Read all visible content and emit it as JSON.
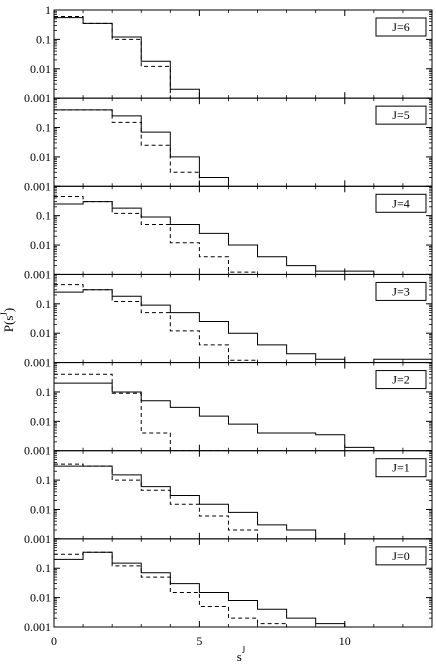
{
  "chart_data": {
    "type": "step-histogram",
    "ylabel": "P(s^J)",
    "ylabel_main": "P(s",
    "ylabel_sup": "J",
    "ylabel_close": ")",
    "xlabel_main": "s",
    "xlabel_sup": "J",
    "xlim": [
      0,
      13
    ],
    "xticks": [
      0,
      5,
      10
    ],
    "xtick_labels": [
      "0",
      "5",
      "10"
    ],
    "yscale": "log",
    "ylim": [
      0.001,
      1
    ],
    "yticks": [
      0.001,
      0.01,
      0.1,
      1
    ],
    "ytick_labels": [
      "0.001",
      "0.01",
      "0.1",
      "1"
    ],
    "bin_edges": [
      0,
      1,
      2,
      3,
      4,
      5,
      6,
      7,
      8,
      9,
      10,
      11,
      12,
      13
    ],
    "line_styles": [
      "solid",
      "dashed"
    ],
    "panels": [
      {
        "label": "J=6",
        "solid": [
          0.55,
          0.35,
          0.12,
          0.018,
          0.002,
          null,
          null,
          null,
          null,
          null,
          null,
          null,
          null
        ],
        "dashed": [
          0.6,
          0.35,
          0.1,
          0.012,
          null,
          null,
          null,
          null,
          null,
          null,
          null,
          null,
          null
        ]
      },
      {
        "label": "J=5",
        "solid": [
          0.4,
          0.4,
          0.25,
          0.07,
          0.01,
          0.002,
          null,
          null,
          null,
          null,
          null,
          null,
          null
        ],
        "dashed": [
          0.4,
          0.4,
          0.15,
          0.025,
          0.003,
          null,
          null,
          null,
          null,
          null,
          null,
          null,
          null
        ]
      },
      {
        "label": "J=4",
        "solid": [
          0.25,
          0.3,
          0.18,
          0.09,
          0.05,
          0.025,
          0.01,
          0.004,
          0.002,
          0.0013,
          0.0013,
          null,
          null
        ],
        "dashed": [
          0.45,
          0.3,
          0.12,
          0.05,
          0.012,
          0.004,
          0.0012,
          null,
          null,
          null,
          null,
          null,
          null
        ]
      },
      {
        "label": "J=3",
        "solid": [
          0.25,
          0.3,
          0.18,
          0.09,
          0.05,
          0.025,
          0.01,
          0.004,
          0.002,
          0.0013,
          null,
          0.0013,
          0.0013
        ],
        "dashed": [
          0.45,
          0.3,
          0.12,
          0.05,
          0.012,
          0.004,
          0.0012,
          null,
          null,
          null,
          null,
          null,
          null
        ]
      },
      {
        "label": "J=2",
        "solid": [
          0.2,
          0.2,
          0.1,
          0.05,
          0.03,
          0.015,
          0.008,
          0.004,
          0.004,
          0.0035,
          0.0013,
          null,
          null
        ],
        "dashed": [
          0.4,
          0.4,
          0.09,
          0.004,
          0.001,
          0.001,
          null,
          null,
          null,
          null,
          null,
          null,
          null
        ]
      },
      {
        "label": "J=1",
        "solid": [
          0.3,
          0.3,
          0.15,
          0.06,
          0.03,
          0.015,
          0.008,
          0.003,
          0.002,
          0.001,
          null,
          null,
          null
        ],
        "dashed": [
          0.35,
          0.3,
          0.1,
          0.045,
          0.015,
          0.006,
          0.002,
          null,
          null,
          null,
          null,
          null,
          null
        ]
      },
      {
        "label": "J=0",
        "solid": [
          0.2,
          0.35,
          0.15,
          0.07,
          0.03,
          0.015,
          0.008,
          0.004,
          0.002,
          0.0013,
          null,
          null,
          null
        ],
        "dashed": [
          0.3,
          0.35,
          0.12,
          0.05,
          0.015,
          0.005,
          0.002,
          0.0013,
          null,
          null,
          null,
          null,
          null
        ]
      }
    ]
  }
}
